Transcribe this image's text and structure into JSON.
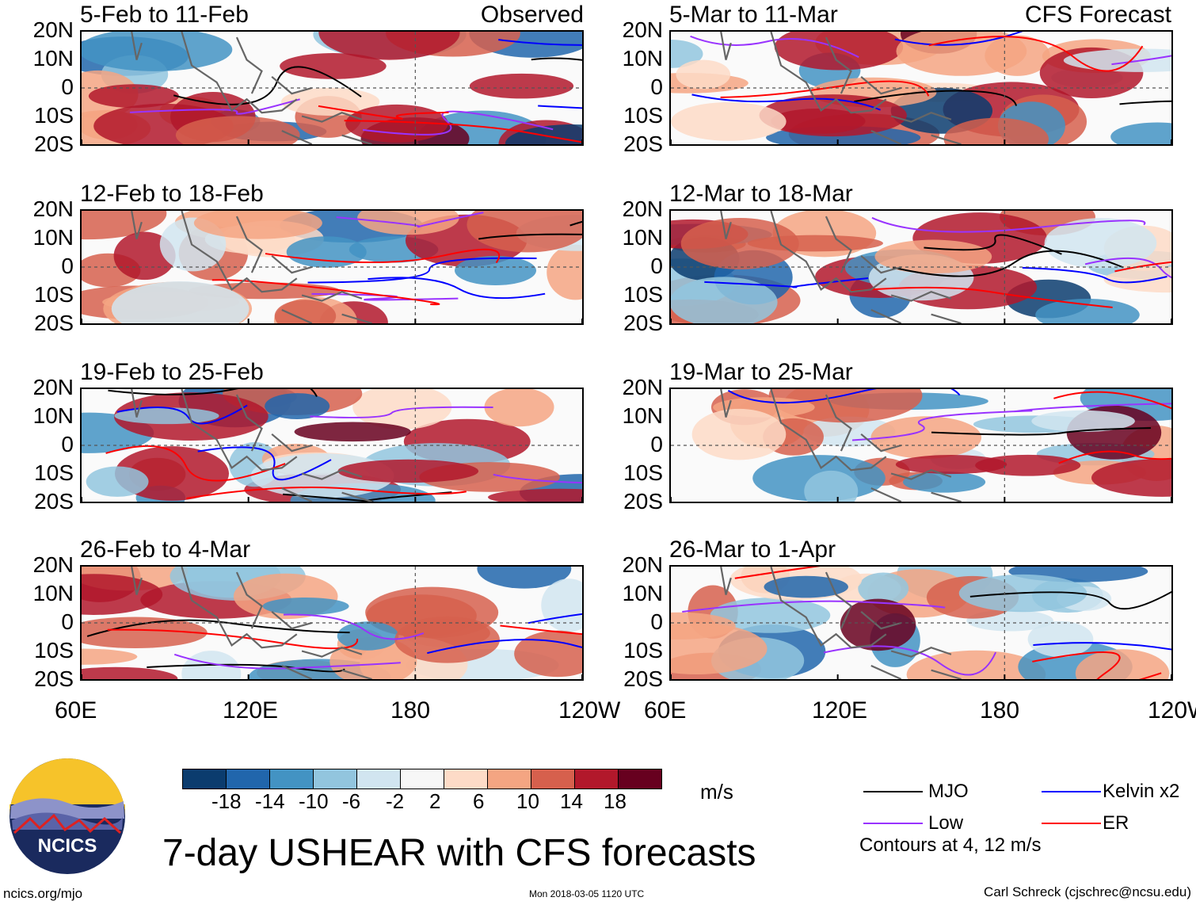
{
  "chart_data": {
    "type": "heatmap",
    "title": "7-day USHEAR with CFS forecasts",
    "variable": "USHEAR",
    "units": "m/s",
    "x_ticks": [
      "60E",
      "120E",
      "180",
      "120W"
    ],
    "y_ticks": [
      "20N",
      "10N",
      "0",
      "10S",
      "20S"
    ],
    "xlim": [
      60,
      240
    ],
    "ylim": [
      -20,
      20
    ],
    "columns": [
      {
        "label": "Observed",
        "panels": [
          "5-Feb to 11-Feb",
          "12-Feb to 18-Feb",
          "19-Feb to 25-Feb",
          "26-Feb to 4-Mar"
        ]
      },
      {
        "label": "CFS Forecast",
        "panels": [
          "5-Mar to 11-Mar",
          "12-Mar to 18-Mar",
          "19-Mar to 25-Mar",
          "26-Mar to 1-Apr"
        ]
      }
    ],
    "colorbar": {
      "ticks": [
        "-18",
        "-14",
        "-10",
        "-6",
        "-2",
        "2",
        "6",
        "10",
        "14",
        "18"
      ],
      "colors": [
        "#0b3c6e",
        "#2166ac",
        "#4393c3",
        "#92c5de",
        "#d1e5f0",
        "#f7f7f7",
        "#fddbc7",
        "#f4a582",
        "#d6604d",
        "#b2182b",
        "#67001f"
      ]
    },
    "contour_legend": [
      {
        "name": "MJO",
        "color": "#000000"
      },
      {
        "name": "Kelvin x2",
        "color": "#0000ff"
      },
      {
        "name": "Low",
        "color": "#9933ff"
      },
      {
        "name": "ER",
        "color": "#ff0000"
      }
    ],
    "contour_note": "Contours at 4, 12 m/s"
  },
  "footer": {
    "site": "ncics.org/mjo",
    "timestamp": "Mon 2018-03-05 1120 UTC",
    "author": "Carl Schreck (cjschrec@ncsu.edu)",
    "logo_text": "NCICS"
  }
}
